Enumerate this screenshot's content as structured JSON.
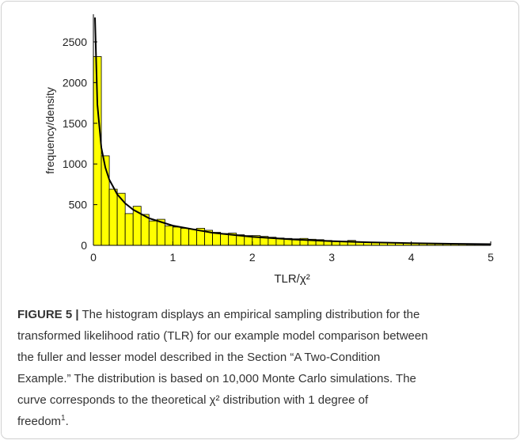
{
  "chart_data": {
    "type": "histogram",
    "xlabel": "TLR/χ²",
    "ylabel": "frequency/density",
    "bins": [
      0,
      0.1,
      0.2,
      0.3,
      0.4,
      0.5,
      0.6,
      0.7,
      0.8,
      0.9,
      1,
      1.1,
      1.2,
      1.3,
      1.4,
      1.5,
      1.6,
      1.7,
      1.8,
      1.9,
      2,
      2.1,
      2.2,
      2.3,
      2.4,
      2.5,
      2.6,
      2.7,
      2.8,
      2.9,
      3,
      3.1,
      3.2,
      3.3,
      3.4,
      3.5,
      3.6,
      3.7,
      3.8,
      3.9,
      4,
      4.1,
      4.2,
      4.3,
      4.4,
      4.5,
      4.6,
      4.7,
      4.8,
      4.9,
      5
    ],
    "counts": [
      2320,
      1100,
      690,
      640,
      390,
      480,
      380,
      300,
      320,
      240,
      225,
      210,
      200,
      210,
      185,
      160,
      145,
      150,
      130,
      120,
      120,
      110,
      100,
      90,
      85,
      80,
      85,
      75,
      70,
      60,
      55,
      50,
      60,
      45,
      40,
      40,
      35,
      32,
      30,
      28,
      25,
      22,
      20,
      18,
      18,
      15,
      14,
      12,
      12,
      10
    ],
    "color": "#ffff00",
    "curve": {
      "type": "line",
      "color": "#000000",
      "x": [
        0.02,
        0.05,
        0.1,
        0.15,
        0.2,
        0.3,
        0.4,
        0.5,
        0.7,
        1,
        1.5,
        2,
        2.5,
        3,
        3.5,
        4,
        4.5,
        5
      ],
      "values": [
        2800,
        1730,
        1200,
        958,
        807,
        627,
        516,
        439,
        333,
        242,
        154,
        104,
        73,
        51,
        37,
        27,
        19,
        15
      ]
    },
    "xlim": [
      0,
      5
    ],
    "xticks": [
      0,
      1,
      2,
      3,
      4,
      5
    ],
    "ylim": [
      0,
      2840
    ],
    "yticks": [
      0,
      500,
      1000,
      1500,
      2000,
      2500
    ]
  },
  "caption": {
    "label": "FIGURE 5 |",
    "lines": [
      " The histogram displays an empirical sampling distribution for the",
      "transformed likelihood ratio (TLR) for our example model comparison between",
      "the fuller and lesser model described in the Section “A Two-Condition",
      "Example.” The distribution is based on 10,000 Monte Carlo simulations. The",
      "curve corresponds to the theoretical χ² distribution with 1 degree of",
      "freedom"
    ],
    "footnote": "1",
    "end": "."
  }
}
